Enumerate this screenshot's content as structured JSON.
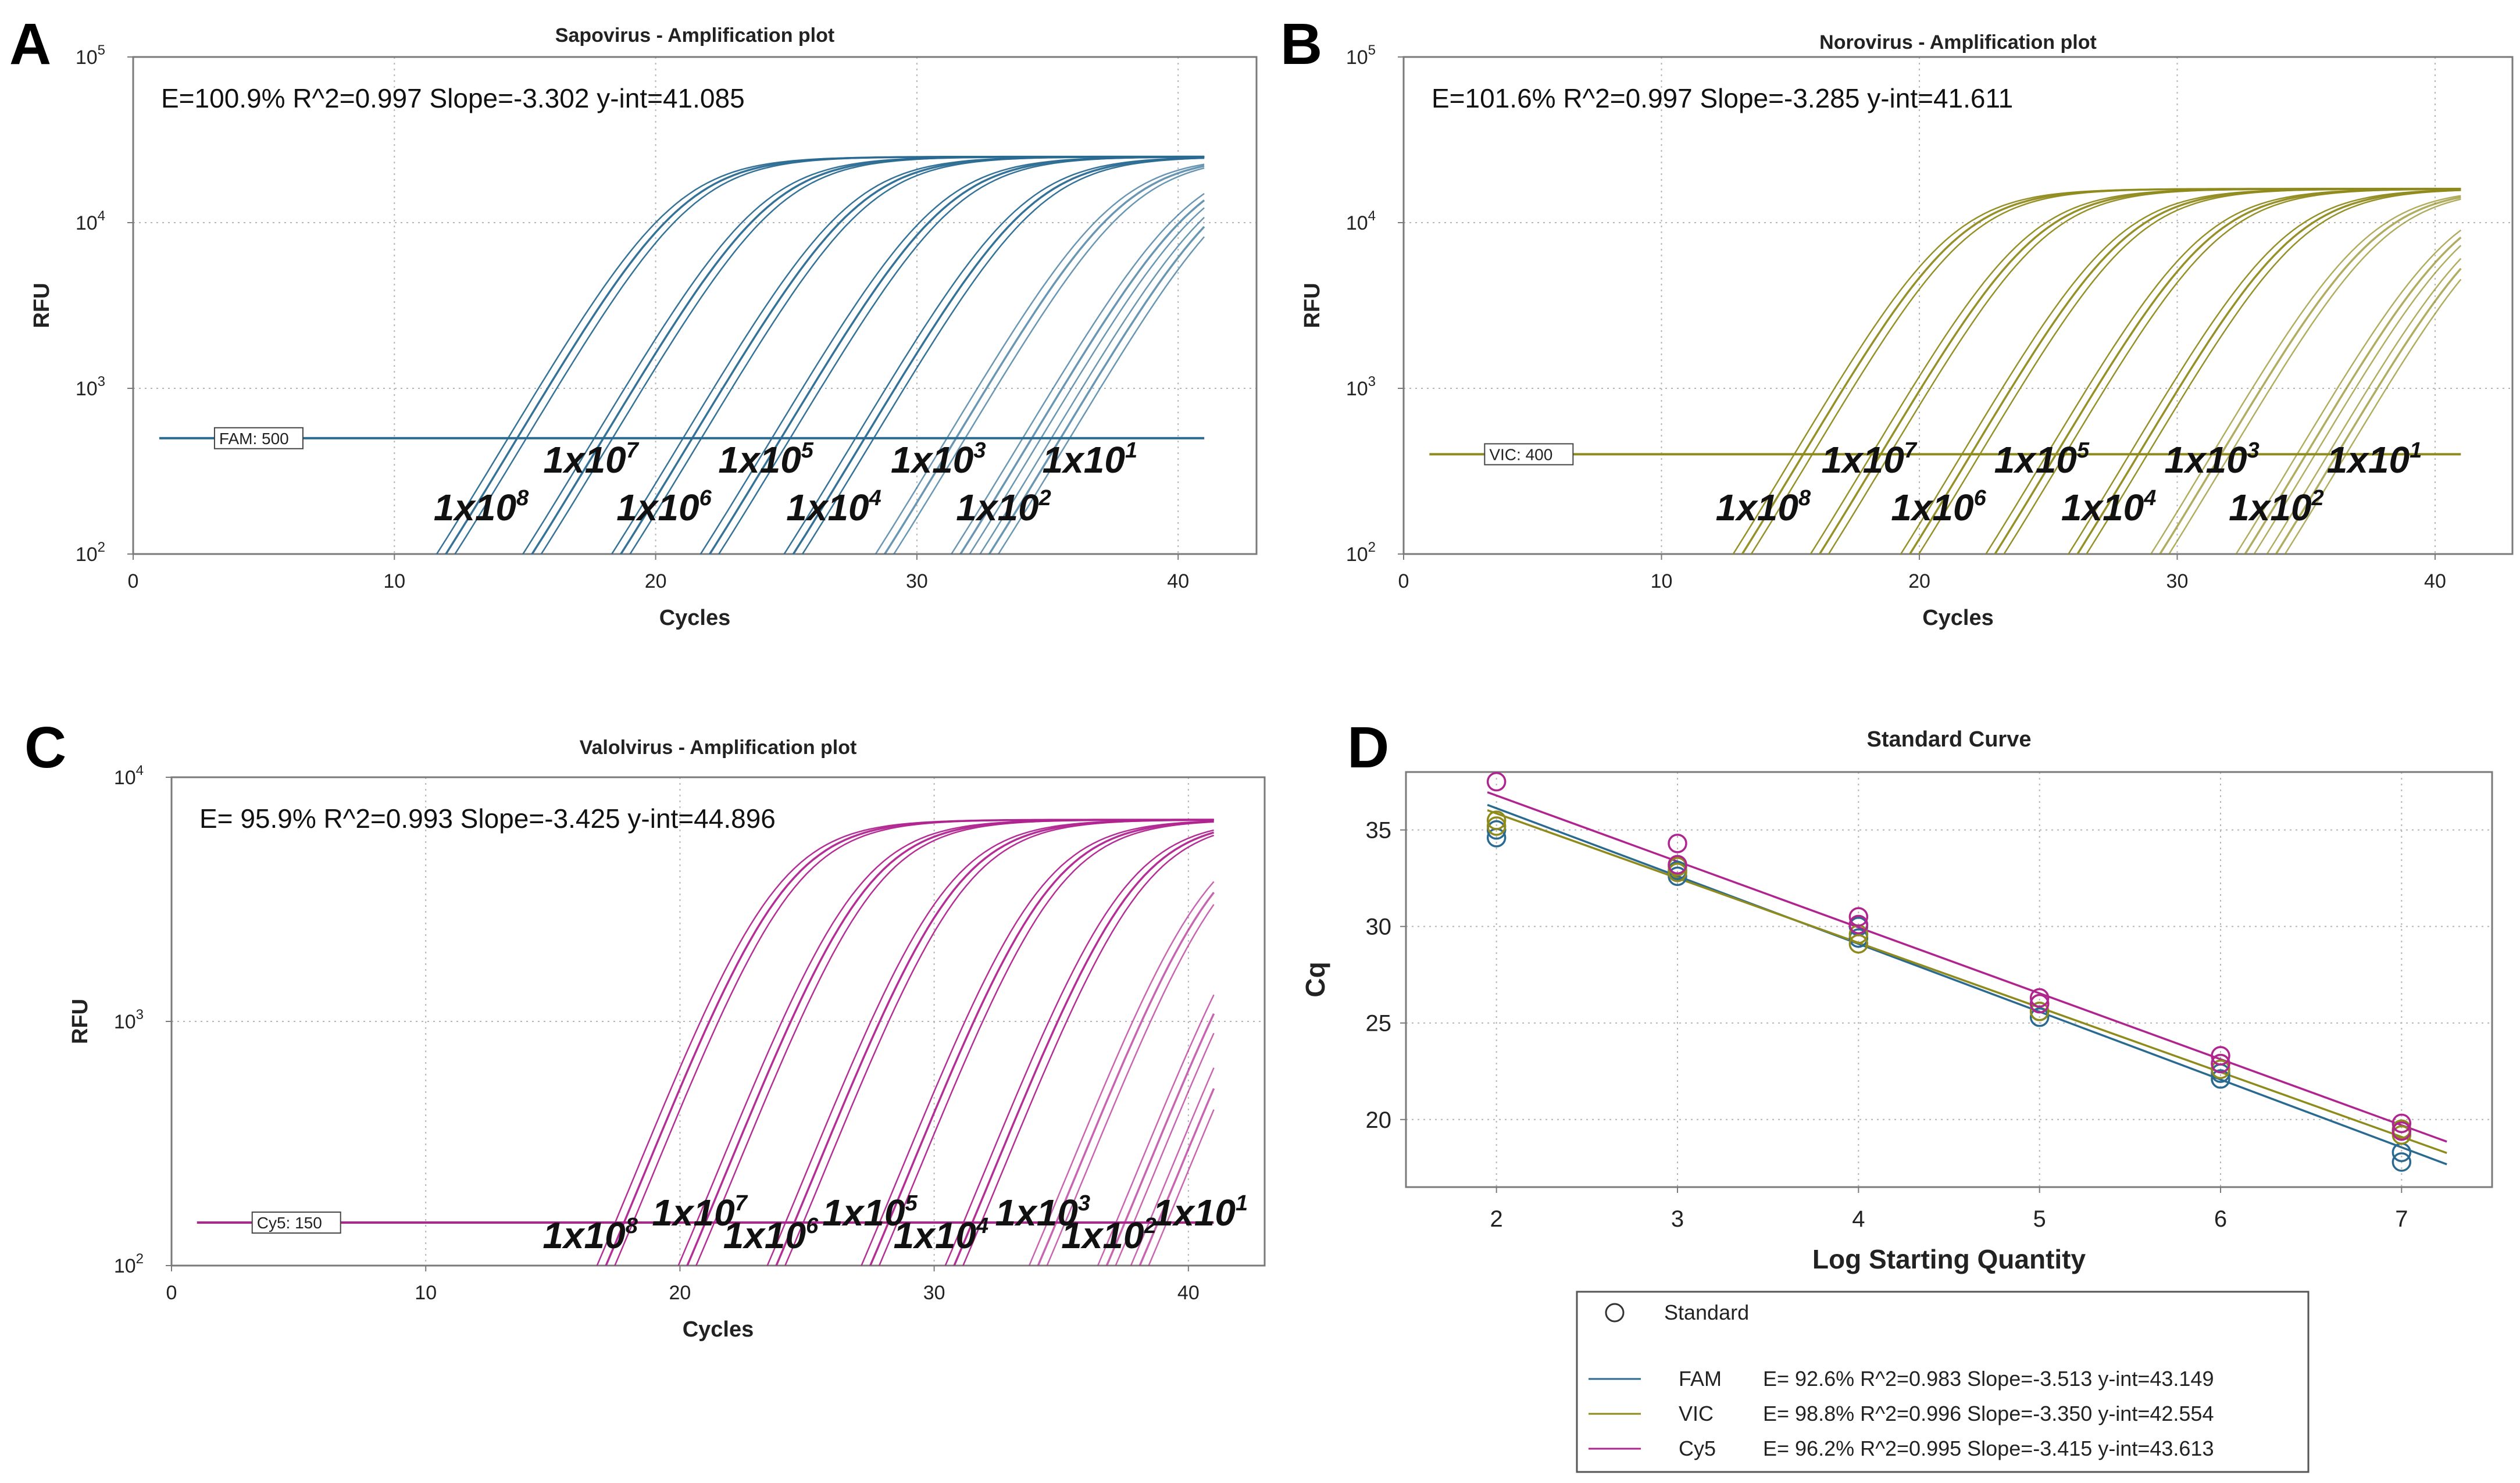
{
  "chart_data": [
    {
      "type": "line",
      "panel": "A",
      "title": "Sapovirus - Amplification plot",
      "xlabel": "Cycles",
      "ylabel": "RFU",
      "xlim": [
        0,
        43
      ],
      "ylim_log10": [
        2,
        5
      ],
      "x_ticks": [
        "0",
        "10",
        "20",
        "30",
        "40"
      ],
      "y_ticks": [
        {
          "base": "10",
          "exp": "2"
        },
        {
          "base": "10",
          "exp": "3"
        },
        {
          "base": "10",
          "exp": "4"
        },
        {
          "base": "10",
          "exp": "5"
        }
      ],
      "color": "#2a6a91",
      "equation": "E=100.9% R^2=0.997 Slope=-3.302 y-int=41.085",
      "threshold_label": "FAM: 500",
      "threshold_value": 500,
      "plateau": 25000,
      "cycle_start": 1,
      "cycle_end": 41,
      "ct_values": [
        14.7,
        18.0,
        21.4,
        24.8,
        28.0,
        31.5,
        34.4,
        35.5
      ],
      "replicate_offsets": [
        -0.35,
        0,
        0.35
      ],
      "dilution_labels": [
        {
          "base": "1x10",
          "exp": "8",
          "cycle": 11.5,
          "rfu": 160
        },
        {
          "base": "1x10",
          "exp": "7",
          "cycle": 15.7,
          "rfu": 310
        },
        {
          "base": "1x10",
          "exp": "6",
          "cycle": 18.5,
          "rfu": 160
        },
        {
          "base": "1x10",
          "exp": "5",
          "cycle": 22.4,
          "rfu": 310
        },
        {
          "base": "1x10",
          "exp": "4",
          "cycle": 25.0,
          "rfu": 160
        },
        {
          "base": "1x10",
          "exp": "3",
          "cycle": 29.0,
          "rfu": 310
        },
        {
          "base": "1x10",
          "exp": "2",
          "cycle": 31.5,
          "rfu": 160
        },
        {
          "base": "1x10",
          "exp": "1",
          "cycle": 34.8,
          "rfu": 310
        }
      ]
    },
    {
      "type": "line",
      "panel": "B",
      "title": "Norovirus - Amplification plot",
      "xlabel": "Cycles",
      "ylabel": "RFU",
      "xlim": [
        0,
        43
      ],
      "ylim_log10": [
        2,
        5
      ],
      "x_ticks": [
        "0",
        "10",
        "20",
        "30",
        "40"
      ],
      "y_ticks": [
        {
          "base": "10",
          "exp": "2"
        },
        {
          "base": "10",
          "exp": "3"
        },
        {
          "base": "10",
          "exp": "4"
        },
        {
          "base": "10",
          "exp": "5"
        }
      ],
      "color": "#8f8a1c",
      "equation": "E=101.6% R^2=0.997 Slope=-3.285 y-int=41.611",
      "threshold_label": "VIC: 400",
      "threshold_value": 400,
      "plateau": 16000,
      "cycle_start": 1,
      "cycle_end": 41,
      "ct_values": [
        15.5,
        18.5,
        22.0,
        25.3,
        28.5,
        31.7,
        35.0,
        36.2
      ],
      "replicate_offsets": [
        -0.35,
        0,
        0.35
      ],
      "dilution_labels": [
        {
          "base": "1x10",
          "exp": "8",
          "cycle": 12.1,
          "rfu": 160
        },
        {
          "base": "1x10",
          "exp": "7",
          "cycle": 16.2,
          "rfu": 310
        },
        {
          "base": "1x10",
          "exp": "6",
          "cycle": 18.9,
          "rfu": 160
        },
        {
          "base": "1x10",
          "exp": "5",
          "cycle": 22.9,
          "rfu": 310
        },
        {
          "base": "1x10",
          "exp": "4",
          "cycle": 25.5,
          "rfu": 160
        },
        {
          "base": "1x10",
          "exp": "3",
          "cycle": 29.5,
          "rfu": 310
        },
        {
          "base": "1x10",
          "exp": "2",
          "cycle": 32.0,
          "rfu": 160
        },
        {
          "base": "1x10",
          "exp": "1",
          "cycle": 35.8,
          "rfu": 310
        }
      ]
    },
    {
      "type": "line",
      "panel": "C",
      "title": "Valolvirus - Amplification plot",
      "xlabel": "Cycles",
      "ylabel": "RFU",
      "xlim": [
        0,
        43
      ],
      "ylim_log10": [
        2,
        4
      ],
      "x_ticks": [
        "0",
        "10",
        "20",
        "30",
        "40"
      ],
      "y_ticks": [
        {
          "base": "10",
          "exp": "2"
        },
        {
          "base": "10",
          "exp": "3"
        },
        {
          "base": "10",
          "exp": "4"
        }
      ],
      "color": "#b0248f",
      "equation": "E= 95.9% R^2=0.993 Slope=-3.425 y-int=44.896",
      "threshold_label": "Cy5: 150",
      "threshold_value": 150,
      "plateau": 6700,
      "cycle_start": 1,
      "cycle_end": 41,
      "ct_values": [
        17.8,
        21.0,
        24.5,
        28.2,
        31.5,
        34.8,
        37.5,
        38.8
      ],
      "replicate_offsets": [
        -0.35,
        0,
        0.35
      ],
      "dilution_labels": [
        {
          "base": "1x10",
          "exp": "8",
          "cycle": 14.6,
          "rfu": 118
        },
        {
          "base": "1x10",
          "exp": "7",
          "cycle": 18.9,
          "rfu": 146
        },
        {
          "base": "1x10",
          "exp": "6",
          "cycle": 21.7,
          "rfu": 118
        },
        {
          "base": "1x10",
          "exp": "5",
          "cycle": 25.6,
          "rfu": 146
        },
        {
          "base": "1x10",
          "exp": "4",
          "cycle": 28.4,
          "rfu": 118
        },
        {
          "base": "1x10",
          "exp": "3",
          "cycle": 32.4,
          "rfu": 146
        },
        {
          "base": "1x10",
          "exp": "2",
          "cycle": 35.0,
          "rfu": 118
        },
        {
          "base": "1x10",
          "exp": "1",
          "cycle": 38.6,
          "rfu": 146
        }
      ]
    },
    {
      "type": "scatter",
      "panel": "D",
      "title": "Standard Curve",
      "xlabel": "Log Starting Quantity",
      "ylabel": "Cq",
      "xlim": [
        1.5,
        7.5
      ],
      "ylim": [
        16.5,
        38.0
      ],
      "x_ticks": [
        "2",
        "3",
        "4",
        "5",
        "6",
        "7"
      ],
      "y_ticks": [
        "20",
        "25",
        "30",
        "35"
      ],
      "legend_marker_label": "Standard",
      "series": [
        {
          "name": "FAM",
          "color": "#2a6a91",
          "slope": -3.513,
          "intercept": 43.149,
          "equation": "E= 92.6% R^2=0.983 Slope=-3.513 y-int=43.149",
          "points": [
            [
              2,
              34.6
            ],
            [
              2,
              35.0
            ],
            [
              3,
              32.6
            ],
            [
              3,
              32.9
            ],
            [
              4,
              29.4
            ],
            [
              4,
              30.0
            ],
            [
              5,
              25.3
            ],
            [
              5,
              25.6
            ],
            [
              6,
              22.1
            ],
            [
              6,
              22.4
            ],
            [
              7,
              17.8
            ],
            [
              7,
              18.3
            ]
          ]
        },
        {
          "name": "VIC",
          "color": "#8f8a1c",
          "slope": -3.35,
          "intercept": 42.554,
          "equation": "E= 98.8% R^2=0.996 Slope=-3.350 y-int=42.554",
          "points": [
            [
              2,
              35.2
            ],
            [
              2,
              35.5
            ],
            [
              3,
              32.8
            ],
            [
              3,
              33.1
            ],
            [
              4,
              29.1
            ],
            [
              4,
              29.6
            ],
            [
              5,
              25.6
            ],
            [
              5,
              26.0
            ],
            [
              6,
              22.6
            ],
            [
              6,
              22.9
            ],
            [
              7,
              19.2
            ],
            [
              7,
              19.5
            ]
          ]
        },
        {
          "name": "Cy5",
          "color": "#b0248f",
          "slope": -3.415,
          "intercept": 43.613,
          "equation": "E= 96.2% R^2=0.995 Slope=-3.415 y-int=43.613",
          "points": [
            [
              2,
              37.5
            ],
            [
              3,
              34.3
            ],
            [
              3,
              33.2
            ],
            [
              4,
              30.5
            ],
            [
              4,
              30.1
            ],
            [
              5,
              26.3
            ],
            [
              5,
              26.0
            ],
            [
              6,
              23.3
            ],
            [
              6,
              22.9
            ],
            [
              7,
              19.8
            ],
            [
              7,
              19.4
            ]
          ]
        }
      ],
      "regression_x_range": [
        1.95,
        7.25
      ]
    }
  ]
}
